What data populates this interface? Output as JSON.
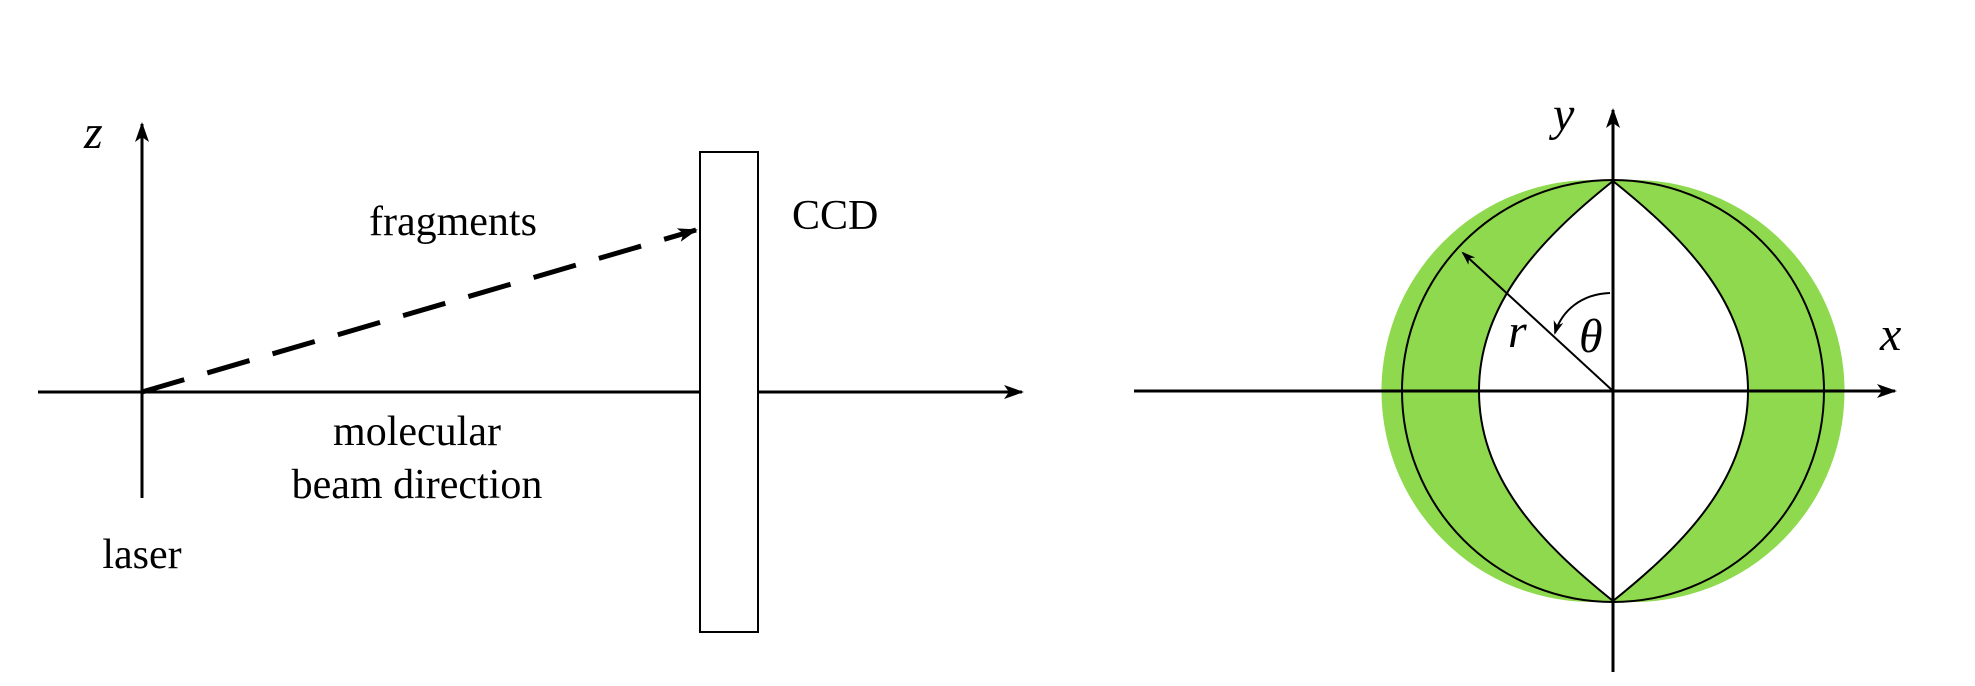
{
  "left_panel": {
    "axis_z_label": "z",
    "fragments_label": "fragments",
    "ccd_label": "CCD",
    "beam_label_line1": "molecular",
    "beam_label_line2": "beam direction",
    "laser_label": "laser"
  },
  "right_panel": {
    "axis_y_label": "y",
    "axis_x_label": "x",
    "radius_label": "r",
    "angle_label": "θ"
  },
  "colors": {
    "line": "#000000",
    "band_fill": "#8fd94e",
    "background": "#ffffff"
  }
}
